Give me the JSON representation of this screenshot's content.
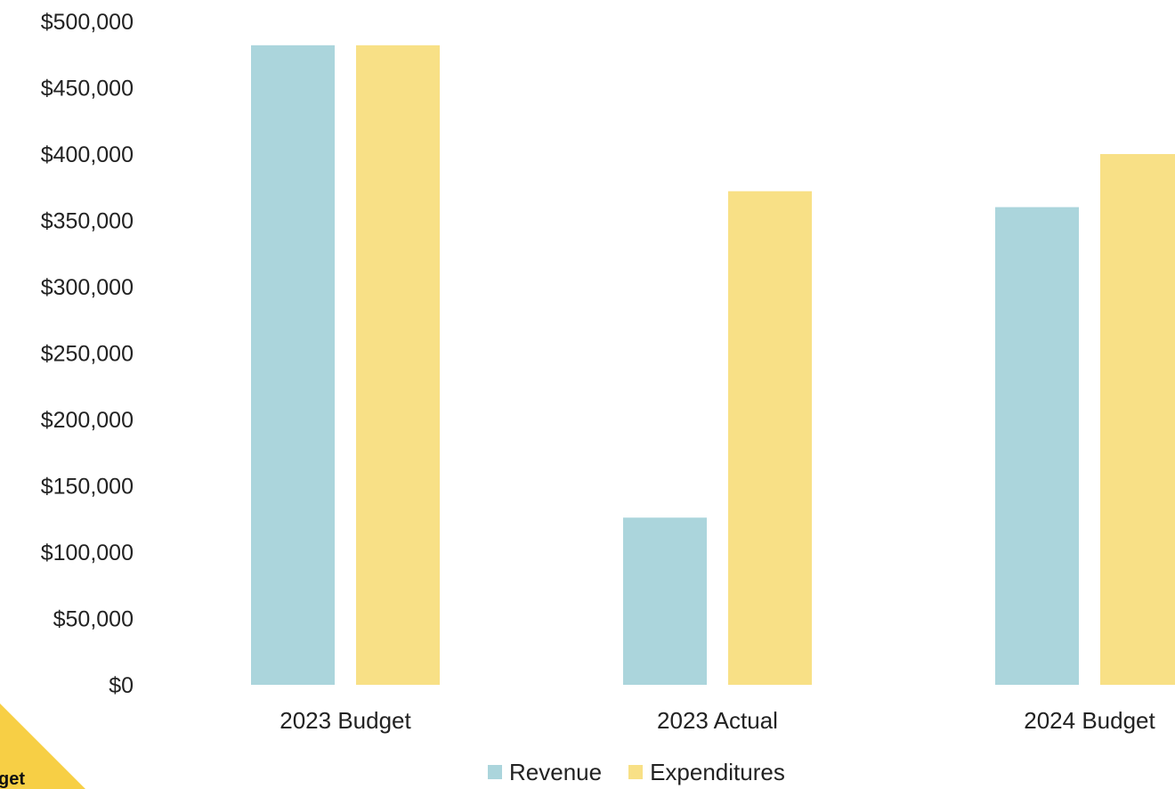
{
  "chart_data": {
    "type": "bar",
    "categories": [
      "2023 Budget",
      "2023 Actual",
      "2024 Budget"
    ],
    "series": [
      {
        "name": "Revenue",
        "color": "#abd5dc",
        "values": [
          482000,
          126000,
          360000
        ]
      },
      {
        "name": "Expenditures",
        "color": "#f8e086",
        "values": [
          482000,
          372000,
          400000
        ]
      }
    ],
    "ylim": [
      0,
      500000
    ],
    "yticks": [
      0,
      50000,
      100000,
      150000,
      200000,
      250000,
      300000,
      350000,
      400000,
      450000,
      500000
    ],
    "ytick_labels": [
      "$0",
      "$50,000",
      "$100,000",
      "$150,000",
      "$200,000",
      "$250,000",
      "$300,000",
      "$350,000",
      "$400,000",
      "$450,000",
      "$500,000"
    ],
    "grid": false,
    "legend_placement": "bottom"
  },
  "legend": {
    "revenue_label": "Revenue",
    "expenditures_label": "Expenditures"
  },
  "corner_badge": {
    "text": "get",
    "color": "#f7cf45"
  }
}
